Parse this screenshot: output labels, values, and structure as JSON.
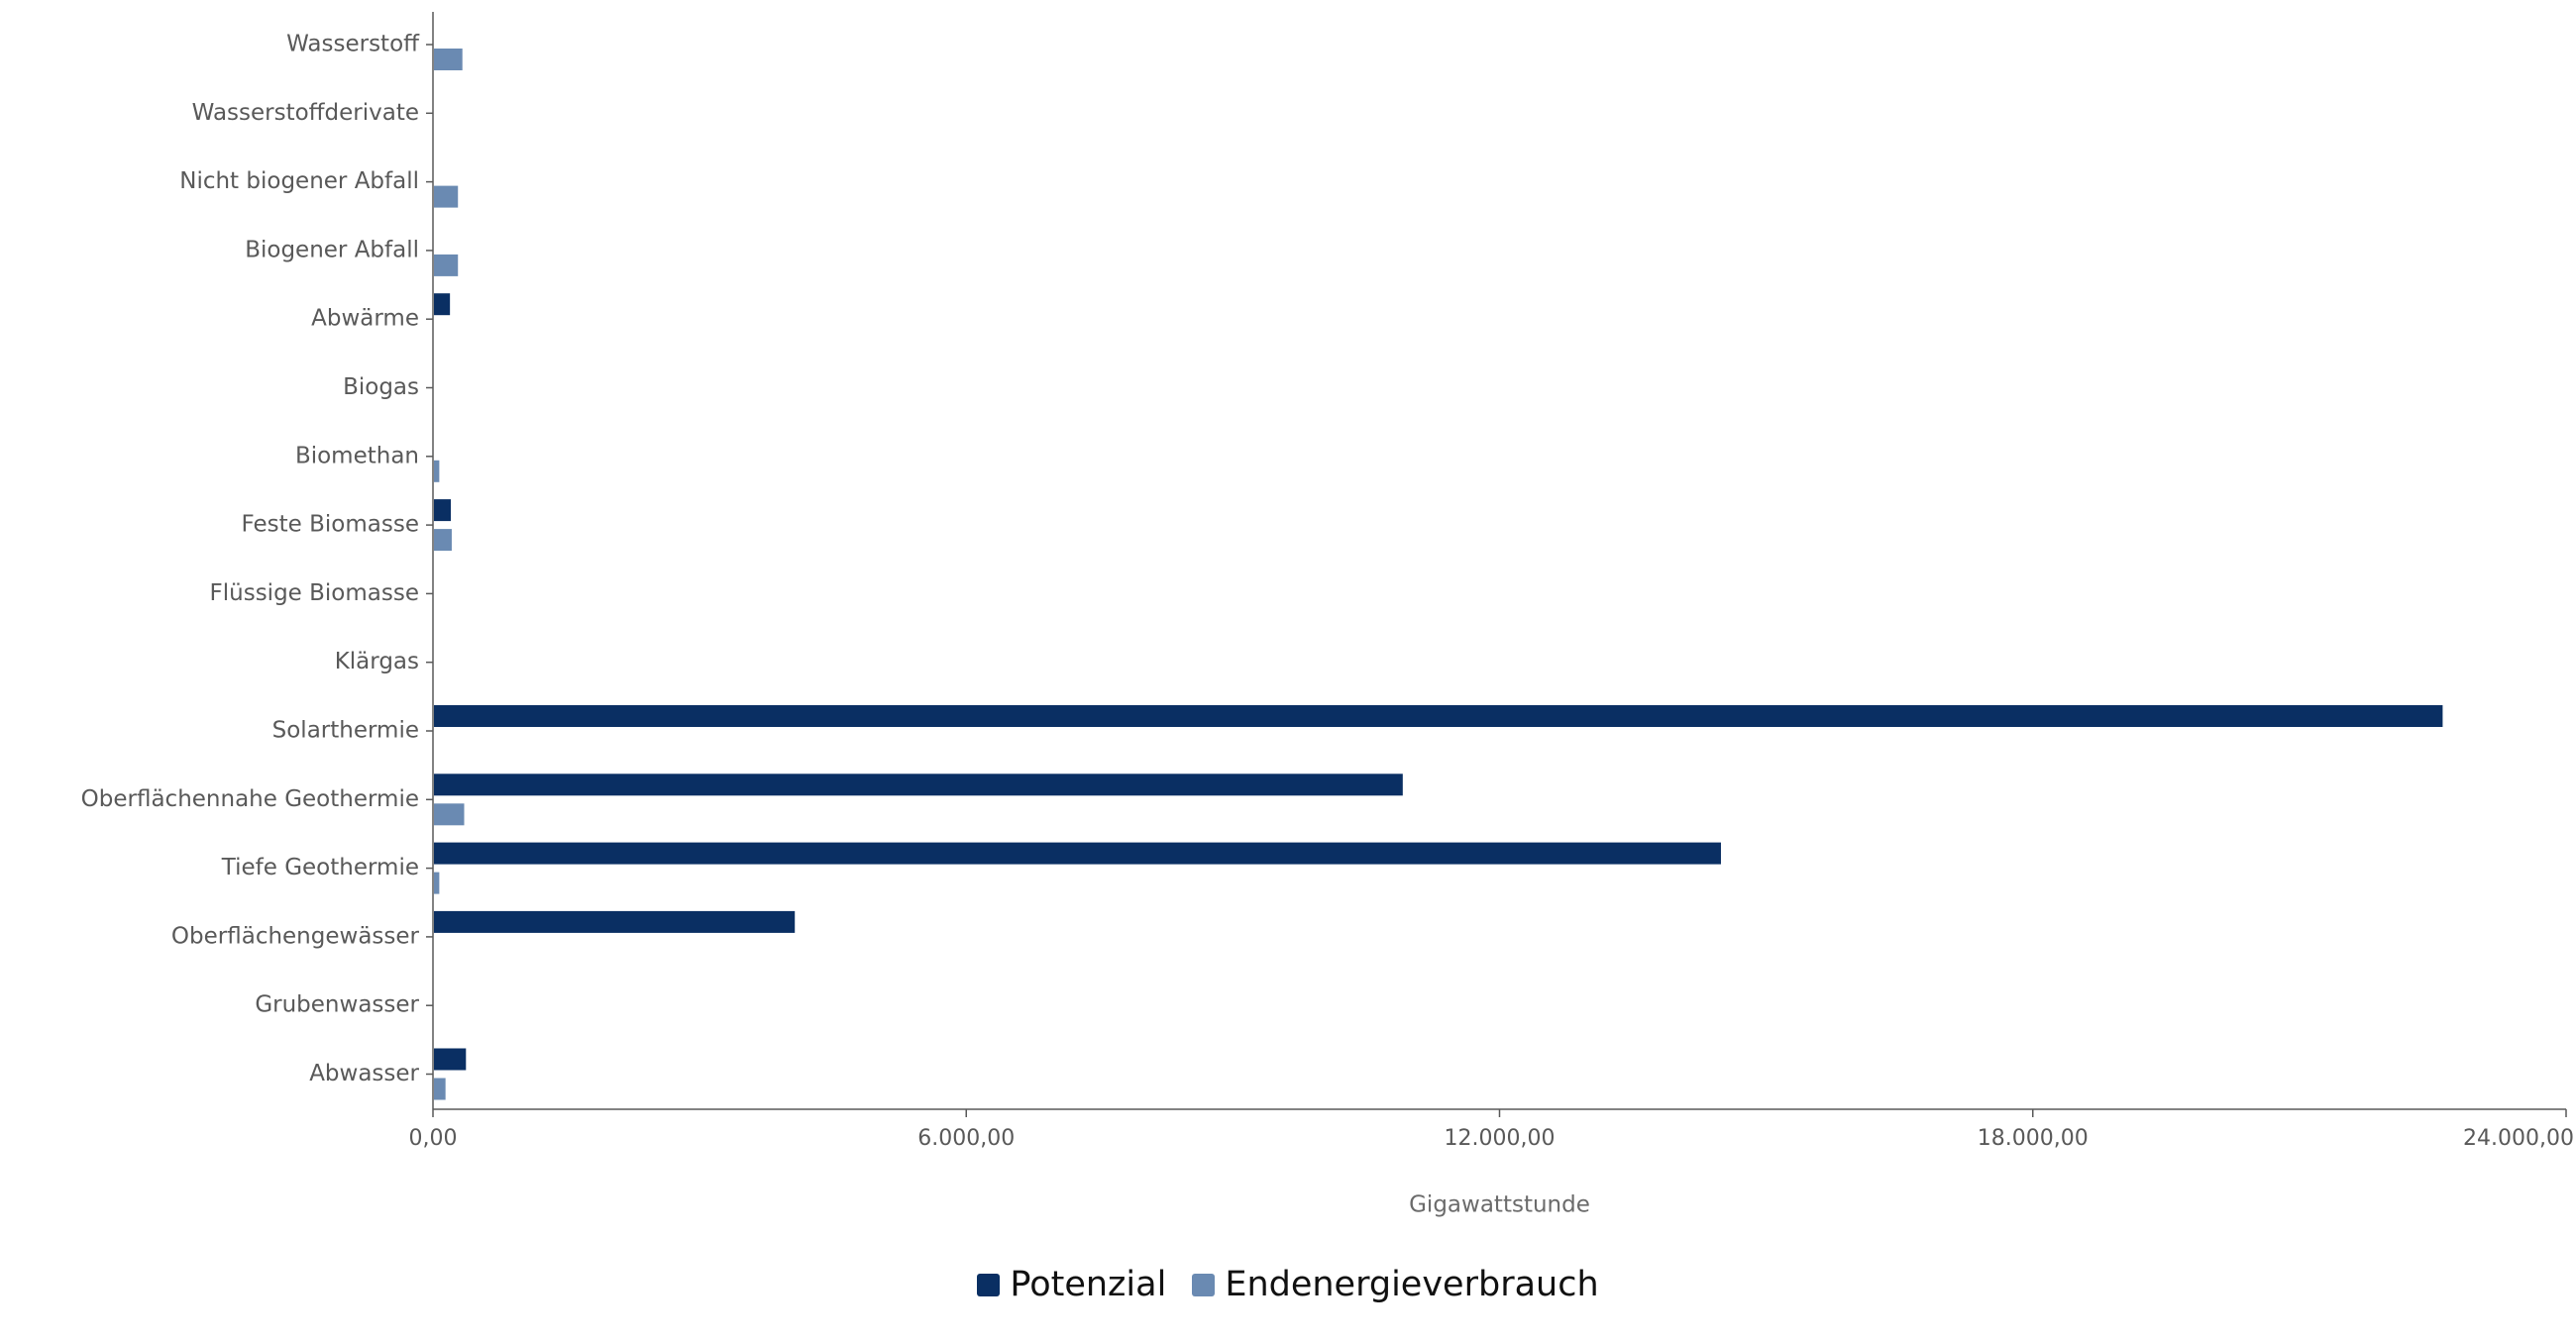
{
  "chart_data": {
    "type": "bar",
    "orientation": "horizontal",
    "categories": [
      "Wasserstoff",
      "Wasserstoffderivate",
      "Nicht biogener Abfall",
      "Biogener Abfall",
      "Abwärme",
      "Biogas",
      "Biomethan",
      "Feste Biomasse",
      "Flüssige Biomasse",
      "Klärgas",
      "Solarthermie",
      "Oberflächennahe Geothermie",
      "Tiefe Geothermie",
      "Oberflächengewässer",
      "Grubenwasser",
      "Abwasser"
    ],
    "series": [
      {
        "name": "Potenzial",
        "color": "#0a2f63",
        "values": [
          0,
          0,
          0,
          0,
          180,
          0,
          0,
          190,
          0,
          0,
          22600,
          10900,
          14480,
          4060,
          0,
          360
        ]
      },
      {
        "name": "Endenergieverbrauch",
        "color": "#6a8ab2",
        "values": [
          320,
          0,
          270,
          270,
          0,
          0,
          60,
          200,
          0,
          0,
          0,
          340,
          60,
          0,
          0,
          130
        ]
      }
    ],
    "xlabel": "Gigawattstunde",
    "xlim": [
      0,
      24000
    ],
    "xticks": [
      0,
      6000,
      12000,
      18000,
      24000
    ],
    "xtick_labels": [
      "0,00",
      "6.000,00",
      "12.000,00",
      "18.000,00",
      "24.000,00"
    ],
    "legend_position": "bottom",
    "grid": false
  }
}
